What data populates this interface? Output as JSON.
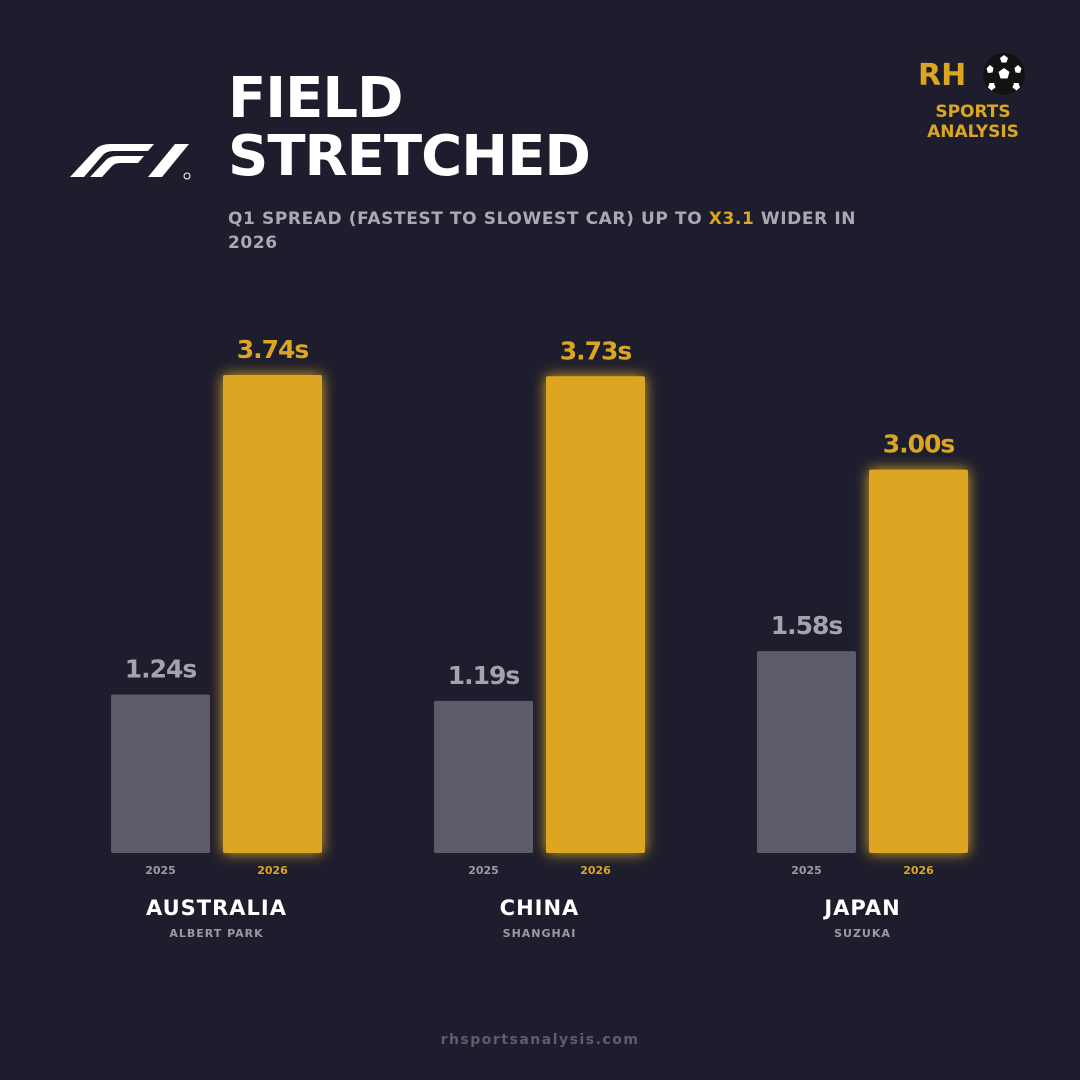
{
  "header": {
    "title_line1": "FIELD",
    "title_line2": "STRETCHED",
    "subtitle_pre": "Q1 SPREAD (FASTEST TO SLOWEST CAR) UP TO ",
    "subtitle_highlight": "X3.1",
    "subtitle_post": " WIDER IN 2026"
  },
  "brand": {
    "initials": "RH",
    "line1": "SPORTS",
    "line2": "ANALYSIS",
    "icon": "soccer-ball-icon"
  },
  "logo": {
    "icon": "f1-logo-icon"
  },
  "colors": {
    "background": "#1d1d2e",
    "accent": "#dca622",
    "bar_2025": "#5c5b69",
    "label_2025": "#a3a3ad",
    "text": "#ffffff",
    "muted": "#9a9aa6"
  },
  "footer": {
    "url": "rhsportsanalysis.com"
  },
  "chart_data": {
    "type": "bar",
    "title": "FIELD STRETCHED",
    "categories": [
      "AUSTRALIA",
      "CHINA",
      "JAPAN"
    ],
    "subcategories": [
      "ALBERT PARK",
      "SHANGHAI",
      "SUZUKA"
    ],
    "unit": "s",
    "series": [
      {
        "name": "2025",
        "values": [
          1.24,
          1.19,
          1.58
        ],
        "labels": [
          "1.24s",
          "1.19s",
          "1.58s"
        ]
      },
      {
        "name": "2026",
        "values": [
          3.74,
          3.73,
          3.0
        ],
        "labels": [
          "3.74s",
          "3.73s",
          "3.00s"
        ]
      }
    ],
    "ylim": [
      0,
      3.74
    ],
    "grid": false,
    "legend": "none"
  }
}
